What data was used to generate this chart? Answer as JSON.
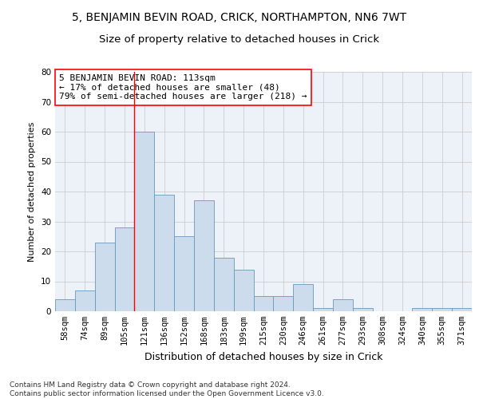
{
  "title": "5, BENJAMIN BEVIN ROAD, CRICK, NORTHAMPTON, NN6 7WT",
  "subtitle": "Size of property relative to detached houses in Crick",
  "xlabel": "Distribution of detached houses by size in Crick",
  "ylabel": "Number of detached properties",
  "categories": [
    "58sqm",
    "74sqm",
    "89sqm",
    "105sqm",
    "121sqm",
    "136sqm",
    "152sqm",
    "168sqm",
    "183sqm",
    "199sqm",
    "215sqm",
    "230sqm",
    "246sqm",
    "261sqm",
    "277sqm",
    "293sqm",
    "308sqm",
    "324sqm",
    "340sqm",
    "355sqm",
    "371sqm"
  ],
  "values": [
    4,
    7,
    23,
    28,
    60,
    39,
    25,
    37,
    18,
    14,
    5,
    5,
    9,
    1,
    4,
    1,
    0,
    0,
    1,
    1,
    1
  ],
  "bar_color": "#ccdcec",
  "bar_edge_color": "#6699bb",
  "grid_color": "#cccccc",
  "background_color": "#edf2f8",
  "vline_x": 3.5,
  "vline_color": "red",
  "annotation_text": "5 BENJAMIN BEVIN ROAD: 113sqm\n← 17% of detached houses are smaller (48)\n79% of semi-detached houses are larger (218) →",
  "annotation_box_facecolor": "white",
  "annotation_box_edgecolor": "red",
  "ylim": [
    0,
    80
  ],
  "yticks": [
    0,
    10,
    20,
    30,
    40,
    50,
    60,
    70,
    80
  ],
  "footnote": "Contains HM Land Registry data © Crown copyright and database right 2024.\nContains public sector information licensed under the Open Government Licence v3.0.",
  "title_fontsize": 10,
  "subtitle_fontsize": 9.5,
  "xlabel_fontsize": 9,
  "ylabel_fontsize": 8,
  "tick_fontsize": 7.5,
  "annotation_fontsize": 8,
  "footnote_fontsize": 6.5
}
